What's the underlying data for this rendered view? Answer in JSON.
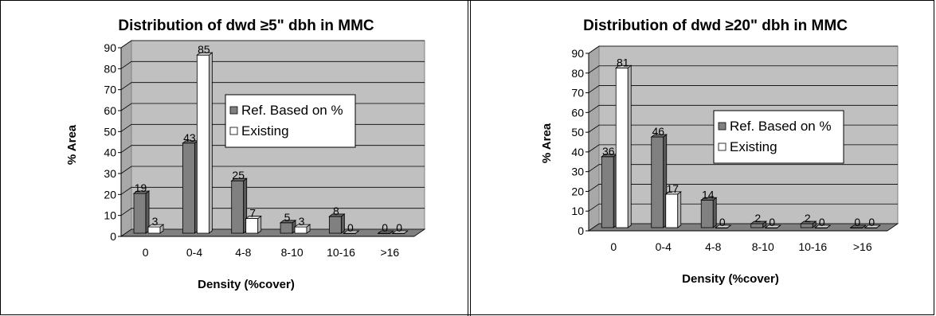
{
  "chart_data": [
    {
      "type": "bar",
      "title": "Distribution of dwd ≥5\" dbh in MMC",
      "xlabel": "Density (%cover)",
      "ylabel": "% Area",
      "ylim": [
        0,
        90
      ],
      "yticks": [
        "0",
        "10",
        "20",
        "30",
        "40",
        "50",
        "60",
        "70",
        "80",
        "90"
      ],
      "categories": [
        "0",
        "0-4",
        "4-8",
        "8-10",
        "10-16",
        ">16"
      ],
      "series": [
        {
          "name": "Ref. Based on %",
          "values": [
            19,
            43,
            25,
            5,
            8,
            0
          ],
          "labels": [
            "19",
            "43",
            "25",
            "5",
            "8",
            "0"
          ],
          "color": "#808080"
        },
        {
          "name": "Existing",
          "values": [
            3,
            85,
            7,
            3,
            0,
            0
          ],
          "labels": [
            "3",
            "85",
            "7",
            "3",
            "0",
            "0"
          ],
          "color": "#ffffff"
        }
      ],
      "legend": "right-middle",
      "grid": true
    },
    {
      "type": "bar",
      "title": "Distribution of dwd ≥20\" dbh in MMC",
      "xlabel": "Density (%cover)",
      "ylabel": "% Area",
      "ylim": [
        0,
        90
      ],
      "yticks": [
        "0",
        "10",
        "20",
        "30",
        "40",
        "50",
        "60",
        "70",
        "80",
        "90"
      ],
      "categories": [
        "0",
        "0-4",
        "4-8",
        "8-10",
        "10-16",
        ">16"
      ],
      "series": [
        {
          "name": "Ref. Based on %",
          "values": [
            36,
            46,
            14,
            2,
            2,
            0
          ],
          "labels": [
            "36",
            "46",
            "14",
            "2",
            "2",
            "0"
          ],
          "color": "#808080"
        },
        {
          "name": "Existing",
          "values": [
            81,
            17,
            0,
            0,
            0,
            0
          ],
          "labels": [
            "81",
            "17",
            "0",
            "0",
            "0",
            "0"
          ],
          "color": "#ffffff"
        }
      ],
      "legend": "right-middle",
      "grid": true
    }
  ]
}
